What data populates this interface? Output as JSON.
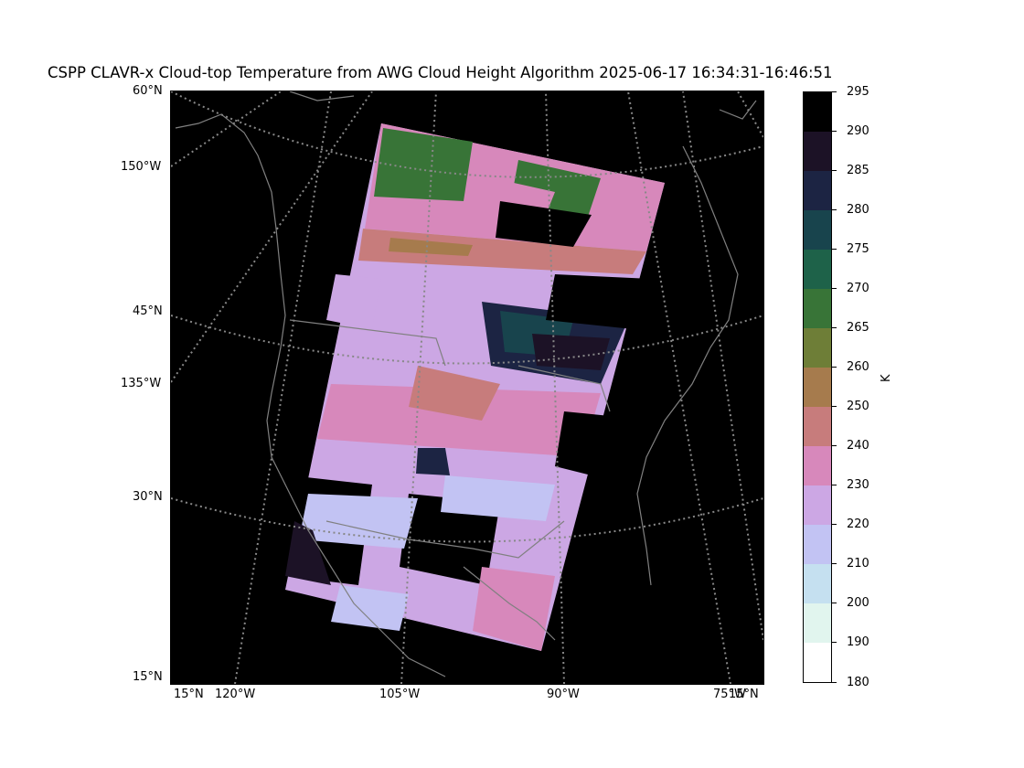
{
  "title": "CSPP CLAVR-x Cloud-top Temperature from AWG Cloud Height Algorithm 2025-06-17 16:34:31-16:46:51",
  "map": {
    "lat_labels": [
      "60°N",
      "150°W",
      "45°N",
      "135°W",
      "30°N",
      "15°N"
    ],
    "lon_labels": [
      "15°N",
      "120°W",
      "105°W",
      "90°W",
      "75°W",
      "15°N"
    ],
    "background_color": "#000000",
    "gridline_color": "#888888",
    "coastline_color": "#808080"
  },
  "colorbar": {
    "unit": "K",
    "tick_labels": [
      "295",
      "290",
      "285",
      "280",
      "275",
      "270",
      "265",
      "260",
      "250",
      "240",
      "230",
      "220",
      "210",
      "200",
      "190",
      "180"
    ],
    "colors": [
      "#000000",
      "#1c1226",
      "#1c2443",
      "#18444d",
      "#1e6249",
      "#387437",
      "#6e7e37",
      "#a67b4d",
      "#c77c7c",
      "#d788bb",
      "#cca7e4",
      "#c2c3f3",
      "#c5e0f0",
      "#e1f5ee",
      "#ffffff"
    ]
  }
}
